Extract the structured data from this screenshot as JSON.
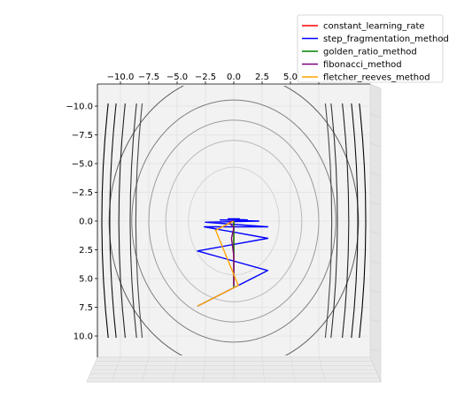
{
  "chart_data": {
    "type": "line",
    "view": "3d-surface-projection-top-down",
    "title": "",
    "xlabel": "",
    "ylabel": "",
    "xlim": [
      -11.5,
      11.5
    ],
    "ylim": [
      -11.5,
      12
    ],
    "x_ticks": [
      -10.0,
      -7.5,
      -5.0,
      -2.5,
      0.0,
      2.5,
      5.0,
      7.5
    ],
    "y_ticks": [
      -10.0,
      -7.5,
      -5.0,
      -2.5,
      0.0,
      2.5,
      5.0,
      7.5,
      10.0
    ],
    "x_tick_labels": [
      "−10.0",
      "−7.5",
      "−5.0",
      "−2.5",
      "0.0",
      "2.5",
      "5.0",
      "7.5"
    ],
    "y_tick_labels": [
      "−10.0",
      "−7.5",
      "−5.0",
      "−2.5",
      "0.0",
      "2.5",
      "5.0",
      "7.5",
      "10.0"
    ],
    "grid": true,
    "legend_position": "top-right",
    "contours": {
      "ellipse_ratio_y_over_x": 2.25,
      "half_widths": [
        4.0,
        6.0,
        7.5,
        9.0,
        11.0
      ],
      "outer_arc_x": [
        8.5,
        9.0,
        10.0,
        10.8,
        11.5
      ],
      "gray_levels": [
        "#d4d4d4",
        "#b8b8b8",
        "#9a9a9a",
        "#7c7c7c",
        "#5e5e5e",
        "#4a4a4a",
        "#333333",
        "#222222",
        "#111111",
        "#000000"
      ]
    },
    "series": [
      {
        "name": "constant_learning_rate",
        "color": "#ff0000",
        "points": [
          [
            0,
            5.8
          ],
          [
            0,
            4.0
          ],
          [
            0,
            2.0
          ],
          [
            0,
            0.8
          ],
          [
            0,
            0.3
          ],
          [
            0,
            0.1
          ],
          [
            0,
            0
          ]
        ]
      },
      {
        "name": "step_fragmentation_method",
        "color": "#0000ff",
        "points": [
          [
            -3.2,
            7.4
          ],
          [
            3.0,
            4.3
          ],
          [
            -3.2,
            2.6
          ],
          [
            3.0,
            1.5
          ],
          [
            -2.6,
            0.5
          ],
          [
            3.0,
            0.5
          ],
          [
            -2.5,
            0.1
          ],
          [
            2.2,
            0.0
          ],
          [
            -1.2,
            -0.1
          ],
          [
            1.2,
            -0.1
          ],
          [
            -0.5,
            -0.2
          ],
          [
            0.5,
            -0.2
          ],
          [
            0,
            0
          ]
        ]
      },
      {
        "name": "golden_ratio_method",
        "color": "#008000",
        "points": [
          [
            0,
            5.8
          ],
          [
            0,
            2.5
          ],
          [
            0,
            0.5
          ],
          [
            0,
            0
          ]
        ]
      },
      {
        "name": "fibonacci_method",
        "color": "#800080",
        "points": [
          [
            0,
            5.6
          ],
          [
            0,
            3.0
          ],
          [
            -0.2,
            1.5
          ],
          [
            0,
            0.6
          ],
          [
            -0.4,
            0.1
          ],
          [
            0,
            0
          ]
        ]
      },
      {
        "name": "fletcher_reeves_method",
        "color": "#ffa500",
        "points": [
          [
            -3.2,
            7.4
          ],
          [
            0.4,
            5.6
          ],
          [
            -1.6,
            0.8
          ],
          [
            0,
            0
          ]
        ]
      }
    ]
  }
}
